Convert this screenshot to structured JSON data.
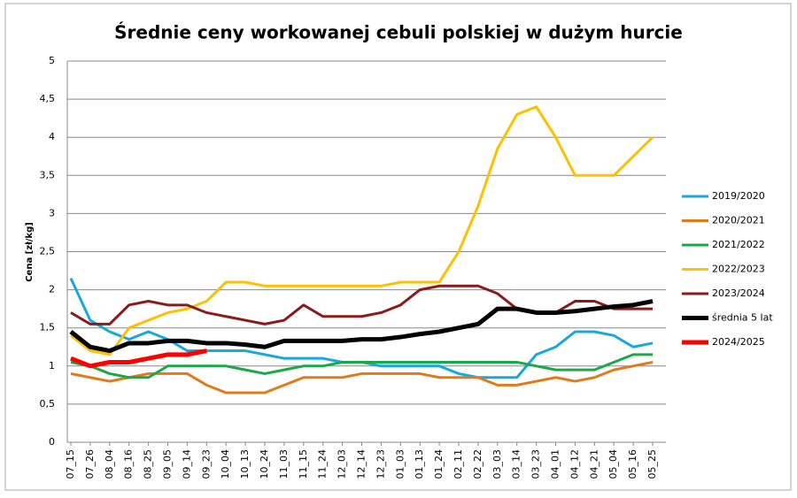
{
  "chart_data": {
    "type": "line",
    "title": "Średnie ceny workowanej cebuli polskiej w dużym hurcie",
    "y_label": "Cena [zł/kg]",
    "categories": [
      "07_15",
      "07_26",
      "08_04",
      "08_16",
      "08_25",
      "09_05",
      "09_14",
      "09_23",
      "10_04",
      "10_13",
      "10_24",
      "11_03",
      "11_15",
      "11_24",
      "12_03",
      "12_14",
      "12_23",
      "01_03",
      "01_13",
      "01_24",
      "02_11",
      "02_22",
      "03_03",
      "03_14",
      "03_23",
      "04_01",
      "04_12",
      "04_21",
      "05_04",
      "05_16",
      "05_25"
    ],
    "ylim": [
      0,
      5
    ],
    "yticks": [
      0,
      {
        "value": 0.5,
        "label": "0,5"
      },
      1,
      {
        "value": 1.5,
        "label": "1,5"
      },
      2,
      {
        "value": 2.5,
        "label": "2,5"
      },
      3,
      {
        "value": 3.5,
        "label": "3,5"
      },
      4,
      {
        "value": 4.5,
        "label": "4,5"
      },
      5
    ],
    "grid": true,
    "legend": "right",
    "series": [
      {
        "name": "2019/2020",
        "color": "#1aa7e0",
        "width": 3,
        "values": [
          2.15,
          1.6,
          1.45,
          1.35,
          1.45,
          1.35,
          1.2,
          1.2,
          1.2,
          1.2,
          1.15,
          1.1,
          1.1,
          1.1,
          1.05,
          1.05,
          1.0,
          1.0,
          1.0,
          1.0,
          0.9,
          0.85,
          0.85,
          0.85,
          1.15,
          1.25,
          1.45,
          1.45,
          1.4,
          1.25,
          1.3
        ]
      },
      {
        "name": "2020/2021",
        "color": "#e07a1a",
        "width": 3,
        "values": [
          0.9,
          0.85,
          0.8,
          0.85,
          0.9,
          0.9,
          0.9,
          0.75,
          0.65,
          0.65,
          0.65,
          0.75,
          0.85,
          0.85,
          0.85,
          0.9,
          0.9,
          0.9,
          0.9,
          0.85,
          0.85,
          0.85,
          0.75,
          0.75,
          0.8,
          0.85,
          0.8,
          0.85,
          0.95,
          1.0,
          1.05
        ]
      },
      {
        "name": "2021/2022",
        "color": "#1aa84a",
        "width": 3,
        "values": [
          1.05,
          1.0,
          0.9,
          0.85,
          0.85,
          1.0,
          1.0,
          1.0,
          1.0,
          0.95,
          0.9,
          0.95,
          1.0,
          1.0,
          1.05,
          1.05,
          1.05,
          1.05,
          1.05,
          1.05,
          1.05,
          1.05,
          1.05,
          1.05,
          1.0,
          0.95,
          0.95,
          0.95,
          1.05,
          1.15,
          1.15
        ]
      },
      {
        "name": "2022/2023",
        "color": "#ffc000",
        "width": 3,
        "values": [
          1.4,
          1.2,
          1.15,
          1.5,
          1.6,
          1.7,
          1.75,
          1.85,
          2.1,
          2.1,
          2.05,
          2.05,
          2.05,
          2.05,
          2.05,
          2.05,
          2.05,
          2.1,
          2.1,
          2.1,
          2.5,
          3.1,
          3.85,
          4.3,
          4.4,
          4.0,
          3.5,
          3.5,
          3.5,
          3.75,
          4.0
        ]
      },
      {
        "name": "2023/2024",
        "color": "#8b1a1a",
        "width": 3,
        "values": [
          1.7,
          1.55,
          1.55,
          1.8,
          1.85,
          1.8,
          1.8,
          1.7,
          1.65,
          1.6,
          1.55,
          1.6,
          1.8,
          1.65,
          1.65,
          1.65,
          1.7,
          1.8,
          2.0,
          2.05,
          2.05,
          2.05,
          1.95,
          1.75,
          1.7,
          1.7,
          1.85,
          1.85,
          1.75,
          1.75,
          1.75
        ]
      },
      {
        "name": "średnia 5 lat",
        "color": "#000000",
        "width": 5,
        "values": [
          1.45,
          1.25,
          1.2,
          1.3,
          1.3,
          1.33,
          1.33,
          1.3,
          1.3,
          1.28,
          1.25,
          1.33,
          1.33,
          1.33,
          1.33,
          1.35,
          1.35,
          1.38,
          1.42,
          1.45,
          1.5,
          1.55,
          1.75,
          1.75,
          1.7,
          1.7,
          1.72,
          1.75,
          1.78,
          1.8,
          1.85
        ]
      },
      {
        "name": "2024/2025",
        "color": "#ff0000",
        "width": 5,
        "values": [
          1.1,
          1.0,
          1.05,
          1.05,
          1.1,
          1.15,
          1.15,
          1.2,
          null,
          null,
          null,
          null,
          null,
          null,
          null,
          null,
          null,
          null,
          null,
          null,
          null,
          null,
          null,
          null,
          null,
          null,
          null,
          null,
          null,
          null,
          null
        ]
      }
    ]
  }
}
